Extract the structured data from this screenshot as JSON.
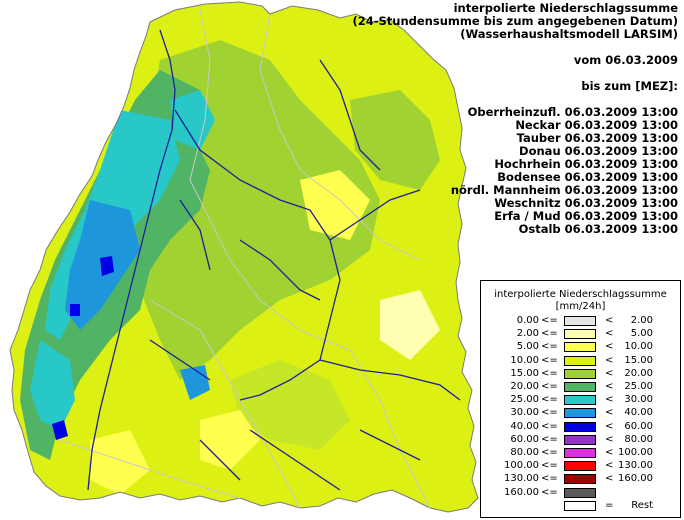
{
  "header": {
    "line1": "interpolierte Niederschlagssumme",
    "line2": "(24-Stundensumme bis zum angegebenen Datum)",
    "line3": "(Wasserhaushaltsmodell LARSIM)",
    "date_line": "vom 06.03.2009",
    "until_line": "bis zum [MEZ]:",
    "basins": [
      "Oberrheinzufl. 06.03.2009 13:00",
      "Neckar 06.03.2009 13:00",
      "Tauber 06.03.2009 13:00",
      "Donau 06.03.2009 13:00",
      "Hochrhein 06.03.2009 13:00",
      "Bodensee 06.03.2009 13:00",
      "nördl. Mannheim 06.03.2009 13:00",
      "Weschnitz 06.03.2009 13:00",
      "Erfa / Mud 06.03.2009 13:00",
      "Ostalb 06.03.2009 13:00"
    ]
  },
  "legend": {
    "title": "interpolierte Niederschlagssumme",
    "unit": "[mm/24h]",
    "rows": [
      {
        "from": "0.00",
        "op1": "<=",
        "op2": "<",
        "to": "2.00",
        "color": "#e6e6e6"
      },
      {
        "from": "2.00",
        "op1": "<=",
        "op2": "<",
        "to": "5.00",
        "color": "#ffffb4"
      },
      {
        "from": "5.00",
        "op1": "<=",
        "op2": "<",
        "to": "10.00",
        "color": "#ffff50"
      },
      {
        "from": "10.00",
        "op1": "<=",
        "op2": "<",
        "to": "15.00",
        "color": "#dcf014"
      },
      {
        "from": "15.00",
        "op1": "<=",
        "op2": "<",
        "to": "20.00",
        "color": "#a0d232"
      },
      {
        "from": "20.00",
        "op1": "<=",
        "op2": "<",
        "to": "25.00",
        "color": "#50b464"
      },
      {
        "from": "25.00",
        "op1": "<=",
        "op2": "<",
        "to": "30.00",
        "color": "#28c8c8"
      },
      {
        "from": "30.00",
        "op1": "<=",
        "op2": "<",
        "to": "40.00",
        "color": "#1e96dc"
      },
      {
        "from": "40.00",
        "op1": "<=",
        "op2": "<",
        "to": "60.00",
        "color": "#0000e6"
      },
      {
        "from": "60.00",
        "op1": "<=",
        "op2": "<",
        "to": "80.00",
        "color": "#9632c8"
      },
      {
        "from": "80.00",
        "op1": "<=",
        "op2": "<",
        "to": "100.00",
        "color": "#dc32dc"
      },
      {
        "from": "100.00",
        "op1": "<=",
        "op2": "<",
        "to": "130.00",
        "color": "#ff0000"
      },
      {
        "from": "130.00",
        "op1": "<=",
        "op2": "<",
        "to": "160.00",
        "color": "#a00000"
      },
      {
        "from": "160.00",
        "op1": "<=",
        "op2": "",
        "to": "",
        "color": "#5a5a5a"
      },
      {
        "from": "",
        "op1": "",
        "op2": "=",
        "to": "Rest",
        "color": "#ffffff"
      }
    ]
  }
}
